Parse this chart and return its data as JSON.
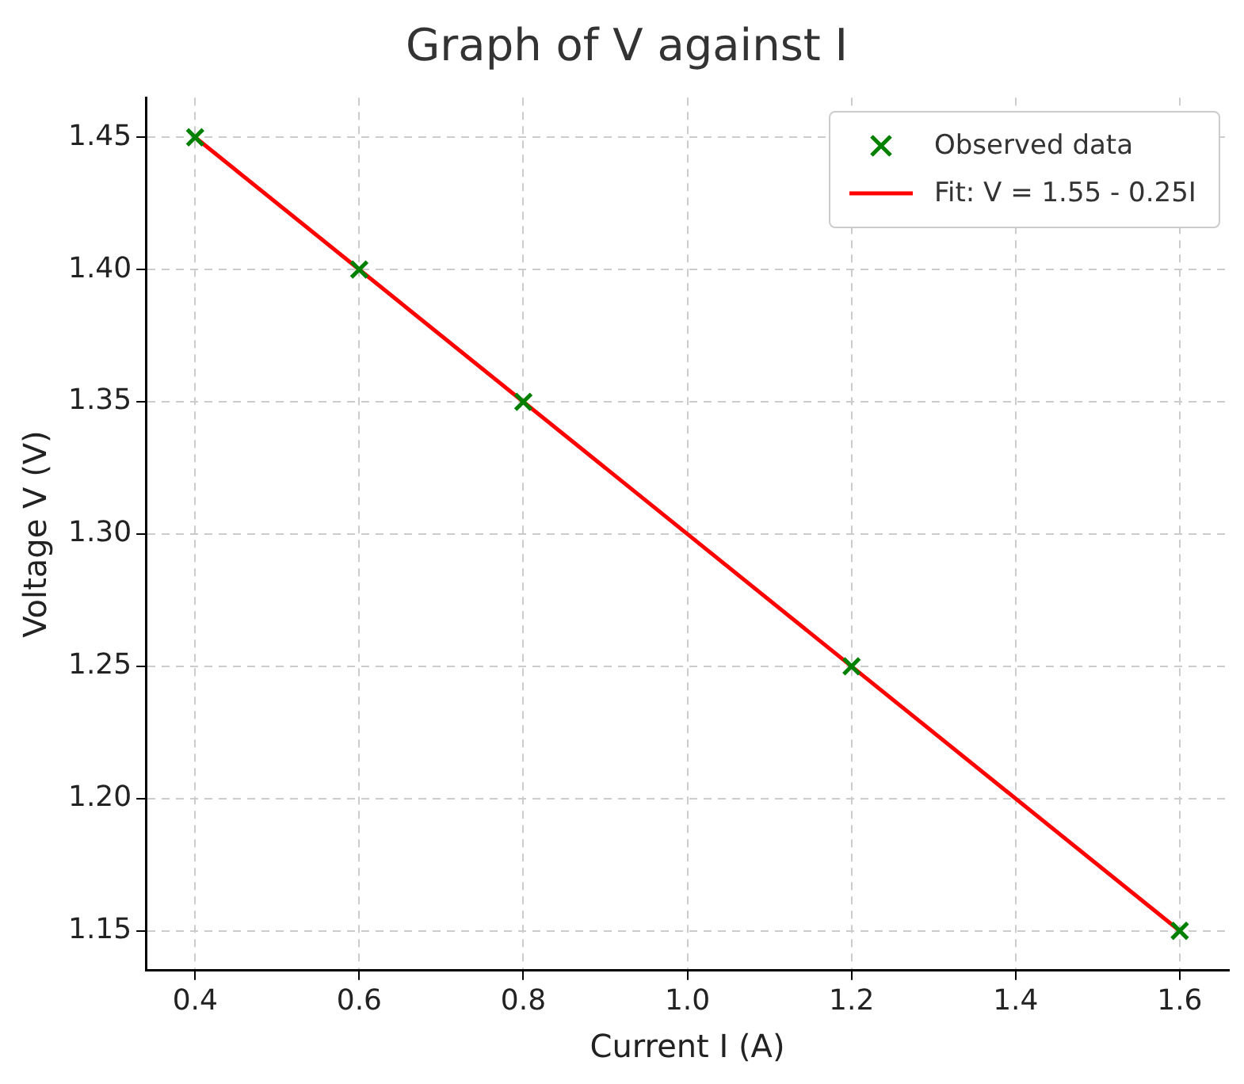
{
  "chart_data": {
    "type": "scatter",
    "title": "Graph of V against I",
    "xlabel": "Current I (A)",
    "ylabel": "Voltage V (V)",
    "series": [
      {
        "name": "Observed data",
        "type": "scatter",
        "color": "#008000",
        "marker": "cross",
        "x": [
          0.4,
          0.6,
          0.8,
          1.2,
          1.6
        ],
        "values": [
          1.45,
          1.4,
          1.35,
          1.25,
          1.15
        ]
      },
      {
        "name": "Fit: V = 1.55 - 0.25I",
        "type": "line",
        "color": "#ff0000",
        "marker": "none",
        "line_style": "solid",
        "x": [
          0.4,
          1.6
        ],
        "values": [
          1.45,
          1.15
        ]
      }
    ],
    "xlim": [
      0.34,
      1.66
    ],
    "xticks": [
      0.4,
      0.6,
      0.8,
      {
        "value": 1.0,
        "label": "1.0"
      },
      1.2,
      1.4,
      1.6
    ],
    "ylim": [
      1.135,
      1.465
    ],
    "yticks": [
      1.15,
      {
        "value": 1.2,
        "label": "1.20"
      },
      1.25,
      {
        "value": 1.3,
        "label": "1.30"
      },
      1.35,
      {
        "value": 1.4,
        "label": "1.40"
      },
      1.45
    ],
    "grid": true,
    "legend": "top right"
  }
}
